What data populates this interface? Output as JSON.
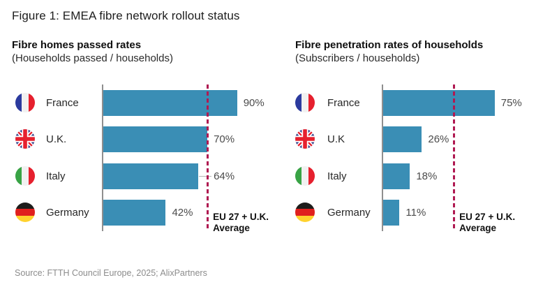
{
  "figure_title": "Figure 1: EMEA fibre network rollout status",
  "source": "Source: FTTH Council Europe, 2025; AlixPartners",
  "colors": {
    "bar": "#3a8eb5",
    "average_line": "#b01a52",
    "axis": "#8f8f8f",
    "value_label": "#4b4b4b",
    "source_text": "#8c8c8c"
  },
  "chart_data": [
    {
      "type": "bar",
      "orientation": "horizontal",
      "title": "Fibre homes passed rates",
      "subtitle": "(Households passed / households)",
      "xlim": [
        0,
        100
      ],
      "unit": "%",
      "grid": false,
      "reference_line": {
        "value": 70,
        "label_line1": "EU 27 + U.K.",
        "label_line2": "Average"
      },
      "rows": [
        {
          "country": "France",
          "flag": "france-flag-icon",
          "value": 90,
          "value_label": "90%"
        },
        {
          "country": "U.K.",
          "flag": "uk-flag-icon",
          "value": 70,
          "value_label": "70%"
        },
        {
          "country": "Italy",
          "flag": "italy-flag-icon",
          "value": 64,
          "value_label": "64%"
        },
        {
          "country": "Germany",
          "flag": "germany-flag-icon",
          "value": 42,
          "value_label": "42%"
        }
      ]
    },
    {
      "type": "bar",
      "orientation": "horizontal",
      "title": "Fibre penetration rates of households",
      "subtitle": "(Subscribers / households)",
      "xlim": [
        0,
        100
      ],
      "unit": "%",
      "grid": false,
      "reference_line": {
        "value": 47.5,
        "label_line1": "EU 27 + U.K.",
        "label_line2": "Average"
      },
      "rows": [
        {
          "country": "France",
          "flag": "france-flag-icon",
          "value": 75,
          "value_label": "75%"
        },
        {
          "country": "U.K",
          "flag": "uk-flag-icon",
          "value": 26,
          "value_label": "26%"
        },
        {
          "country": "Italy",
          "flag": "italy-flag-icon",
          "value": 18,
          "value_label": "18%"
        },
        {
          "country": "Germany",
          "flag": "germany-flag-icon",
          "value": 11,
          "value_label": "11%"
        }
      ]
    }
  ]
}
